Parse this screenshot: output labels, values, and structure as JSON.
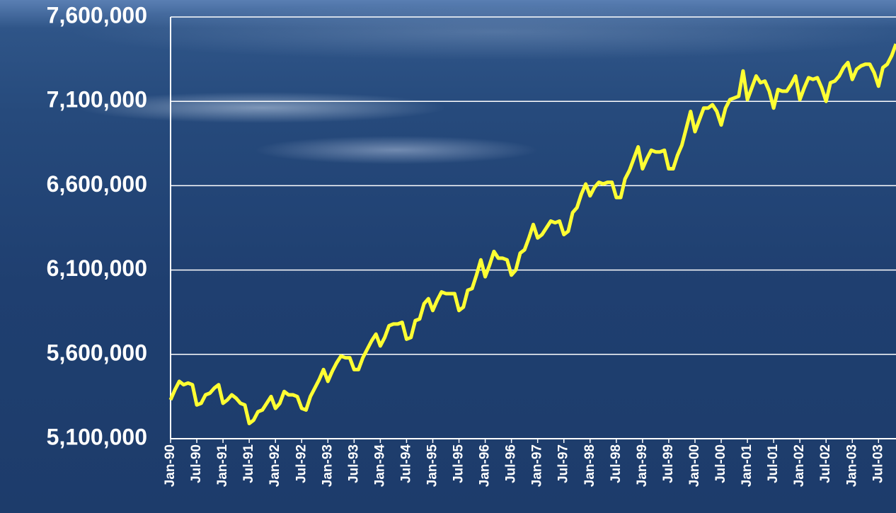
{
  "chart_data": {
    "type": "line",
    "categories": [
      "Jan-90",
      null,
      null,
      null,
      null,
      null,
      "Jul-90",
      null,
      null,
      null,
      null,
      null,
      "Jan-91",
      null,
      null,
      null,
      null,
      null,
      "Jul-91",
      null,
      null,
      null,
      null,
      null,
      "Jan-92",
      null,
      null,
      null,
      null,
      null,
      "Jul-92",
      null,
      null,
      null,
      null,
      null,
      "Jan-93",
      null,
      null,
      null,
      null,
      null,
      "Jul-93",
      null,
      null,
      null,
      null,
      null,
      "Jan-94",
      null,
      null,
      null,
      null,
      null,
      "Jul-94",
      null,
      null,
      null,
      null,
      null,
      "Jan-95",
      null,
      null,
      null,
      null,
      null,
      "Jul-95",
      null,
      null,
      null,
      null,
      null,
      "Jan-96",
      null,
      null,
      null,
      null,
      null,
      "Jul-96",
      null,
      null,
      null,
      null,
      null,
      "Jan-97",
      null,
      null,
      null,
      null,
      null,
      "Jul-97",
      null,
      null,
      null,
      null,
      null,
      "Jan-98",
      null,
      null,
      null,
      null,
      null,
      "Jul-98",
      null,
      null,
      null,
      null,
      null,
      "Jan-99",
      null,
      null,
      null,
      null,
      null,
      "Jul-99",
      null,
      null,
      null,
      null,
      null,
      "Jan-00",
      null,
      null,
      null,
      null,
      null,
      "Jul-00",
      null,
      null,
      null,
      null,
      null,
      "Jan-01",
      null,
      null,
      null,
      null,
      null,
      "Jul-01",
      null,
      null,
      null,
      null,
      null,
      "Jan-02",
      null,
      null,
      null,
      null,
      null,
      "Jul-02",
      null,
      null,
      null,
      null,
      null,
      "Jan-03",
      null,
      null,
      null,
      null,
      null,
      "Jul-03",
      null,
      null,
      null,
      null
    ],
    "series": [
      {
        "color": "#ffff33",
        "values": [
          5330000,
          5390000,
          5440000,
          5420000,
          5430000,
          5420000,
          5300000,
          5310000,
          5360000,
          5370000,
          5400000,
          5420000,
          5310000,
          5330000,
          5360000,
          5340000,
          5310000,
          5300000,
          5190000,
          5210000,
          5260000,
          5270000,
          5310000,
          5350000,
          5280000,
          5310000,
          5380000,
          5360000,
          5360000,
          5350000,
          5280000,
          5270000,
          5350000,
          5400000,
          5450000,
          5510000,
          5440000,
          5500000,
          5550000,
          5590000,
          5580000,
          5580000,
          5510000,
          5510000,
          5580000,
          5630000,
          5680000,
          5720000,
          5650000,
          5700000,
          5770000,
          5780000,
          5780000,
          5790000,
          5690000,
          5700000,
          5800000,
          5810000,
          5900000,
          5930000,
          5860000,
          5920000,
          5970000,
          5960000,
          5960000,
          5960000,
          5860000,
          5880000,
          5980000,
          5990000,
          6070000,
          6160000,
          6060000,
          6130000,
          6210000,
          6170000,
          6170000,
          6160000,
          6070000,
          6100000,
          6200000,
          6220000,
          6290000,
          6370000,
          6290000,
          6310000,
          6350000,
          6390000,
          6380000,
          6390000,
          6310000,
          6330000,
          6440000,
          6470000,
          6550000,
          6610000,
          6540000,
          6590000,
          6620000,
          6610000,
          6620000,
          6620000,
          6530000,
          6530000,
          6640000,
          6690000,
          6760000,
          6830000,
          6700000,
          6760000,
          6810000,
          6800000,
          6800000,
          6810000,
          6700000,
          6700000,
          6780000,
          6840000,
          6940000,
          7040000,
          6920000,
          6990000,
          7060000,
          7060000,
          7080000,
          7040000,
          6960000,
          7060000,
          7110000,
          7120000,
          7130000,
          7280000,
          7110000,
          7180000,
          7250000,
          7210000,
          7220000,
          7160000,
          7060000,
          7170000,
          7160000,
          7160000,
          7200000,
          7250000,
          7110000,
          7180000,
          7240000,
          7230000,
          7240000,
          7180000,
          7100000,
          7210000,
          7220000,
          7250000,
          7300000,
          7330000,
          7230000,
          7290000,
          7310000,
          7320000,
          7320000,
          7270000,
          7190000,
          7300000,
          7320000,
          7370000,
          7440000
        ]
      }
    ],
    "ylim": [
      5100000,
      7600000
    ],
    "yticks": [
      {
        "value": 5100000,
        "label": "5,100,000"
      },
      {
        "value": 5600000,
        "label": "5,600,000"
      },
      {
        "value": 6100000,
        "label": "6,100,000"
      },
      {
        "value": 6600000,
        "label": "6,600,000"
      },
      {
        "value": 7100000,
        "label": "7,100,000"
      },
      {
        "value": 7600000,
        "label": "7,600,000"
      }
    ],
    "grid": true
  }
}
